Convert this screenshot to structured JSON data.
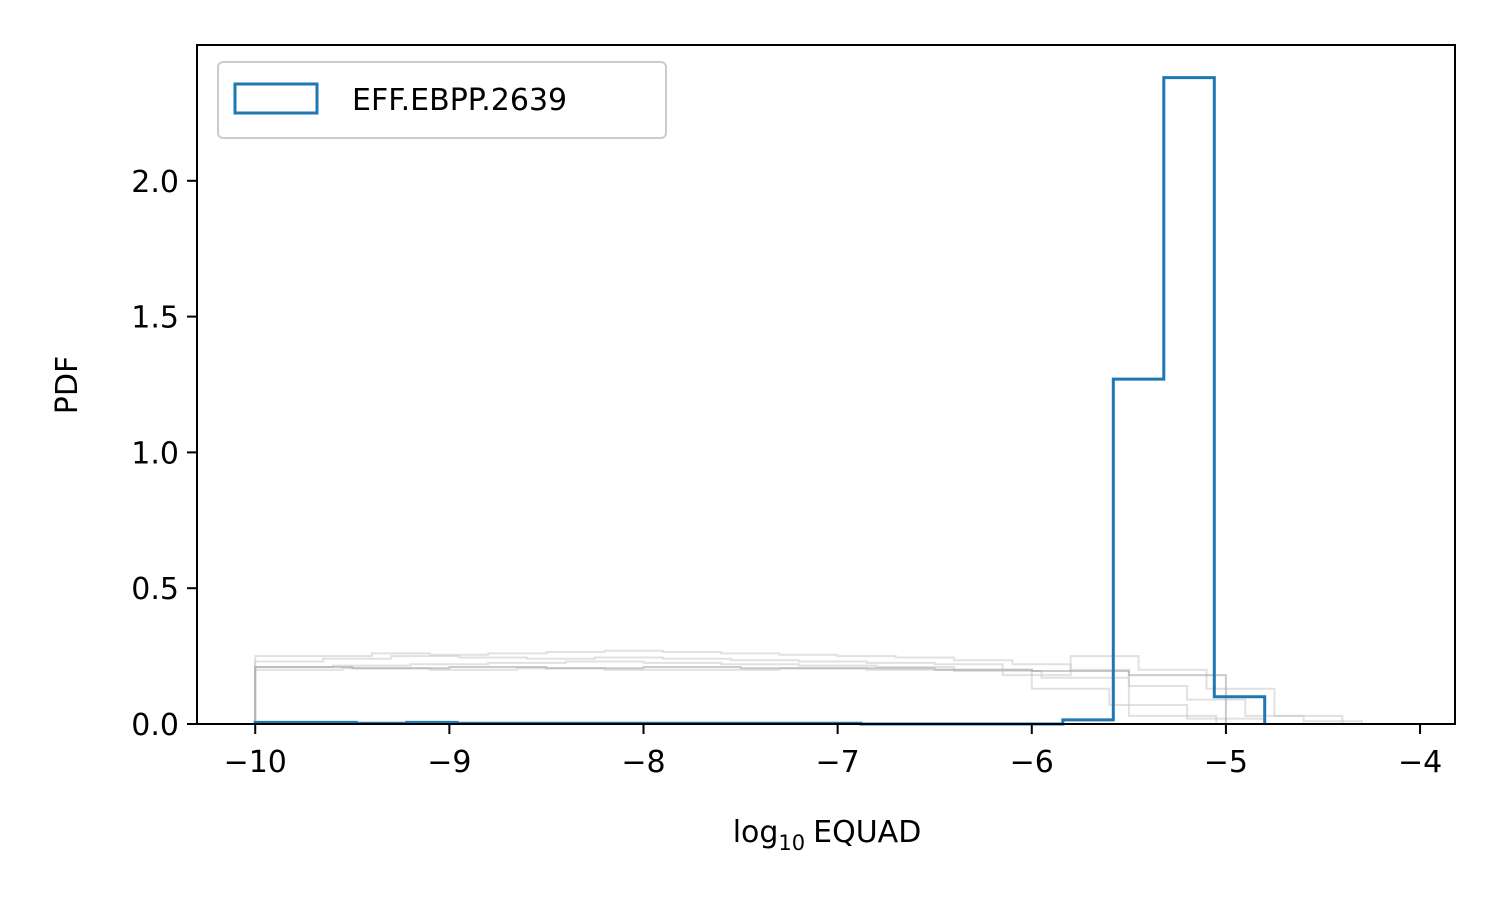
{
  "chart_data": {
    "type": "histogram",
    "xlabel": {
      "base": "log",
      "subscript": "10",
      "name": "EQUAD"
    },
    "ylabel": "PDF",
    "xlim": [
      -10.3,
      -3.82
    ],
    "ylim": [
      0,
      2.5
    ],
    "x_ticks": [
      -10,
      -9,
      -8,
      -7,
      -6,
      -5,
      -4
    ],
    "x_tick_labels": [
      "−10",
      "−9",
      "−8",
      "−7",
      "−6",
      "−5",
      "−4"
    ],
    "y_ticks": [
      0.0,
      0.5,
      1.0,
      1.5,
      2.0
    ],
    "y_tick_labels": [
      "0.0",
      "0.5",
      "1.0",
      "1.5",
      "2.0"
    ],
    "grid": false,
    "legend": {
      "placement": "top-left",
      "entries": [
        "EFF.EBPP.2639"
      ]
    },
    "colors": {
      "highlight": "#1f77b4",
      "background": "#c8c8c8",
      "background_strong": "#a0a0a0"
    },
    "series": [
      {
        "name": "EFF.EBPP.2639",
        "role": "highlight",
        "bin_edges": [
          -10.0,
          -9.74,
          -9.48,
          -9.22,
          -8.96,
          -8.7,
          -8.44,
          -8.18,
          -7.92,
          -7.66,
          -7.4,
          -7.14,
          -6.88,
          -6.62,
          -6.36,
          -6.1,
          -5.84,
          -5.58,
          -5.32,
          -5.06,
          -4.8
        ],
        "values": [
          0.006,
          0.006,
          0.003,
          0.006,
          0.003,
          0.003,
          0.003,
          0.003,
          0.003,
          0.003,
          0.003,
          0.003,
          0.0,
          0.0,
          0.0,
          0.0,
          0.015,
          1.27,
          2.38,
          0.1
        ]
      },
      {
        "role": "background",
        "bin_edges": [
          -10.0,
          -9.7,
          -9.4,
          -9.1,
          -8.8,
          -8.5,
          -8.2,
          -7.9,
          -7.6,
          -7.3,
          -7.0,
          -6.7,
          -6.4,
          -6.1,
          -5.8,
          -5.5,
          -5.2,
          -4.9,
          -4.6,
          -4.3
        ],
        "values": [
          0.25,
          0.25,
          0.26,
          0.255,
          0.26,
          0.265,
          0.27,
          0.265,
          0.26,
          0.255,
          0.25,
          0.245,
          0.235,
          0.22,
          0.2,
          0.14,
          0.09,
          0.03,
          0.01
        ]
      },
      {
        "role": "background",
        "bin_edges": [
          -10.0,
          -9.65,
          -9.3,
          -8.95,
          -8.6,
          -8.25,
          -7.9,
          -7.55,
          -7.2,
          -6.85,
          -6.5,
          -6.15,
          -5.8,
          -5.45,
          -5.1,
          -4.75,
          -4.4
        ],
        "values": [
          0.23,
          0.24,
          0.25,
          0.245,
          0.24,
          0.245,
          0.24,
          0.235,
          0.23,
          0.225,
          0.22,
          0.18,
          0.25,
          0.2,
          0.13,
          0.03
        ]
      },
      {
        "role": "background",
        "bin_edges": [
          -10.0,
          -9.6,
          -9.2,
          -8.8,
          -8.4,
          -8.0,
          -7.6,
          -7.2,
          -6.8,
          -6.4,
          -6.0,
          -5.6,
          -5.2,
          -4.8
        ],
        "values": [
          0.21,
          0.215,
          0.22,
          0.225,
          0.23,
          0.225,
          0.22,
          0.215,
          0.21,
          0.2,
          0.13,
          0.07,
          0.02
        ]
      },
      {
        "role": "background",
        "bin_edges": [
          -10.0,
          -9.55,
          -9.1,
          -8.65,
          -8.2,
          -7.75,
          -7.3,
          -6.85,
          -6.4,
          -5.95,
          -5.5,
          -5.05
        ],
        "values": [
          0.2,
          0.205,
          0.2,
          0.205,
          0.2,
          0.2,
          0.205,
          0.2,
          0.195,
          0.17,
          0.03
        ]
      },
      {
        "role": "background_strong",
        "bin_edges": [
          -10.0,
          -9.5,
          -9.0,
          -8.5,
          -8.0,
          -7.5,
          -7.0,
          -6.5,
          -6.0,
          -5.5,
          -5.0
        ],
        "values": [
          0.21,
          0.205,
          0.21,
          0.205,
          0.21,
          0.205,
          0.205,
          0.2,
          0.195,
          0.18
        ]
      }
    ]
  }
}
